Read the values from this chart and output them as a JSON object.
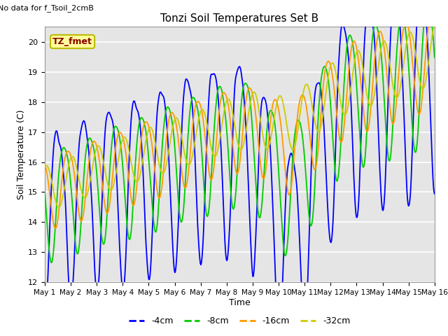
{
  "title": "Tonzi Soil Temperatures Set B",
  "xlabel": "Time",
  "ylabel": "Soil Temperature (C)",
  "note": "No data for f_Tsoil_2cmB",
  "box_label": "TZ_fmet",
  "ylim": [
    12.0,
    20.5
  ],
  "yticks": [
    12.0,
    13.0,
    14.0,
    15.0,
    16.0,
    17.0,
    18.0,
    19.0,
    20.0
  ],
  "xtick_labels": [
    "May 1",
    "May 2",
    "May 3",
    "May 4",
    "May 5",
    "May 6",
    "May 7",
    "May 8",
    "May 9",
    "May 10",
    "May 11",
    "May 12",
    "May 13",
    "May 14",
    "May 15",
    "May 16"
  ],
  "colors": {
    "4cm": "#0000ff",
    "8cm": "#00cc00",
    "16cm": "#ff9900",
    "32cm": "#cccc00"
  },
  "legend_labels": [
    "-4cm",
    "-8cm",
    "-16cm",
    "-32cm"
  ],
  "bg_color": "#e5e5e5",
  "grid_color": "white",
  "figsize": [
    6.4,
    4.8
  ],
  "dpi": 100
}
